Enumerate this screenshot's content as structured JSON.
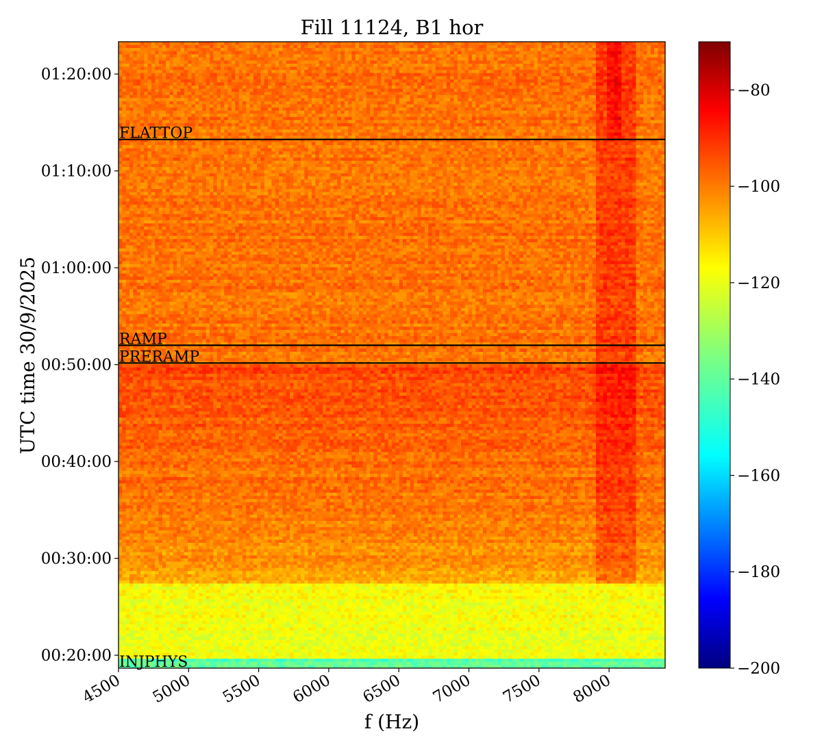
{
  "chart_data": {
    "type": "heatmap",
    "title": "Fill 11124, B1 hor",
    "xlabel": "f (Hz)",
    "ylabel": "UTC time 30/9/2025",
    "x_ticks": [
      4500,
      5000,
      5500,
      6000,
      6500,
      7000,
      7500,
      8000
    ],
    "x_range_hz": [
      4500,
      8400
    ],
    "y_ticks": [
      {
        "time": "00:20:00",
        "label": "00:20:00"
      },
      {
        "time": "00:30:00",
        "label": "00:30:00"
      },
      {
        "time": "00:40:00",
        "label": "00:40:00"
      },
      {
        "time": "00:50:00",
        "label": "00:50:00"
      },
      {
        "time": "01:00:00",
        "label": "01:00:00"
      },
      {
        "time": "01:10:00",
        "label": "01:10:00"
      },
      {
        "time": "01:20:00",
        "label": "01:20:00"
      }
    ],
    "y_range_time": [
      "00:18:40",
      "01:23:20"
    ],
    "colorbar": {
      "colormap": "jet",
      "min": -200,
      "max": -70,
      "ticks": [
        -80,
        -100,
        -120,
        -140,
        -160,
        -180,
        -200
      ],
      "tick_labels": [
        "−80",
        "−100",
        "−120",
        "−140",
        "−160",
        "−180",
        "−200"
      ]
    },
    "beam_modes": [
      {
        "name": "FLATTOP",
        "time": "01:13:15"
      },
      {
        "name": "RAMP",
        "time": "00:52:00"
      },
      {
        "name": "PRERAMP",
        "time": "00:50:10"
      },
      {
        "name": "INJPHYS",
        "time": "00:18:40"
      }
    ],
    "colors": {
      "frame": "#000000",
      "mode_line": "#000000",
      "background": "#ffffff"
    },
    "grid": false
  }
}
